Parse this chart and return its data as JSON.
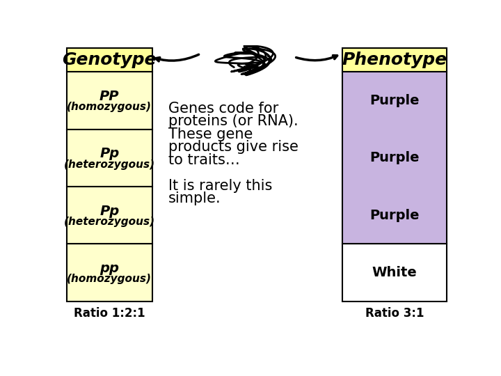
{
  "title_left": "Genotype",
  "title_right": "Phenotype",
  "title_bg": "#ffff99",
  "title_fontsize": 18,
  "title_fontweight": "bold",
  "genotype_bg": "#ffffcc",
  "phenotype_purple_bg": "#c8b4e0",
  "phenotype_white_bg": "#ffffff",
  "genotype_rows": [
    {
      "label1": "PP",
      "label2": "(homozygous)"
    },
    {
      "label1": "Pp",
      "label2": "(heterozygous)"
    },
    {
      "label1": "Pp",
      "label2": "(heterozygous)"
    },
    {
      "label1": "pp",
      "label2": "(homozygous)"
    }
  ],
  "phenotype_rows": [
    {
      "label": "Purple",
      "purple": true
    },
    {
      "label": "Purple",
      "purple": true
    },
    {
      "label": "Purple",
      "purple": true
    },
    {
      "label": "White",
      "purple": false
    }
  ],
  "main_text_lines": [
    "Genes code for",
    "proteins (or RNA).",
    "These gene",
    "products give rise",
    "to traits…",
    "",
    "It is rarely this",
    "simple."
  ],
  "ratio_left": "Ratio 1:2:1",
  "ratio_right": "Ratio 3:1",
  "bg_color": "#ffffff",
  "text_color": "#000000",
  "main_text_fontsize": 15,
  "row_label_fontsize": 12,
  "ratio_fontsize": 12
}
